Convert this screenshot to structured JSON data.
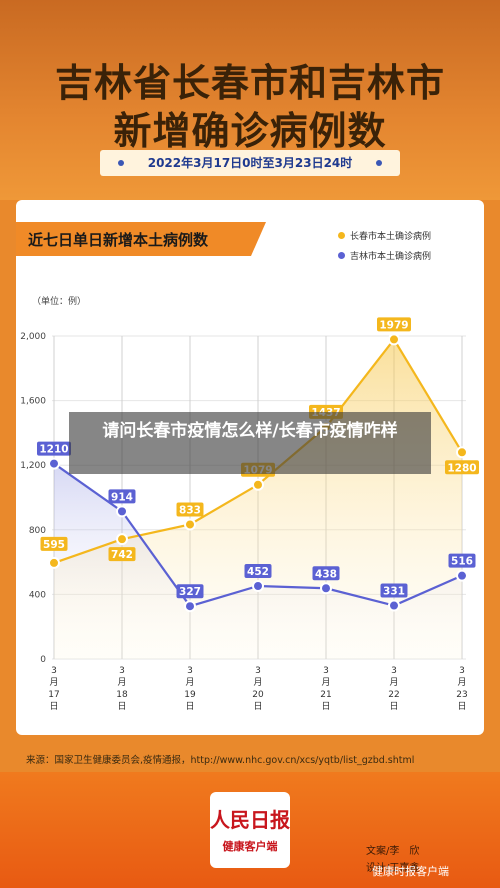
{
  "header": {
    "title_line1": "吉林省长春市和吉林市",
    "title_line2": "新增确诊病例数",
    "date_range": "2022年3月17日0时至3月23日24时"
  },
  "card": {
    "heading": "近七日单日新增本土病例数"
  },
  "chart_data": {
    "type": "line",
    "title": "近七日单日新增本土病例数",
    "unit_label": "（单位：例）",
    "x": [
      [
        "3",
        "月",
        "17",
        "日"
      ],
      [
        "3",
        "月",
        "18",
        "日"
      ],
      [
        "3",
        "月",
        "19",
        "日"
      ],
      [
        "3",
        "月",
        "20",
        "日"
      ],
      [
        "3",
        "月",
        "21",
        "日"
      ],
      [
        "3",
        "月",
        "22",
        "日"
      ],
      [
        "3",
        "月",
        "23",
        "日"
      ]
    ],
    "ylim": [
      0,
      2000
    ],
    "yticks": [
      0,
      400,
      800,
      1200,
      1600,
      2000
    ],
    "ytick_labels": [
      "0",
      "400",
      "800",
      "1,200",
      "1,600",
      "2,000"
    ],
    "grid": true,
    "legend_position": "top-right",
    "series": [
      {
        "name": "长春市本土确诊病例",
        "color": "#f4b71d",
        "values": [
          595,
          742,
          833,
          1079,
          1437,
          1979,
          1280
        ]
      },
      {
        "name": "吉林市本土确诊病例",
        "color": "#5b61d3",
        "values": [
          1210,
          914,
          327,
          452,
          438,
          331,
          516
        ]
      }
    ]
  },
  "source": "来源：国家卫生健康委员会,疫情通报，http://www.nhc.gov.cn/xcs/yqtb/list_gzbd.shtml",
  "footer": {
    "logo_main": "人民日报",
    "logo_sub": "健康客户端",
    "credit_text": "文案/李　欣",
    "credit_design": "设计/王嘉鑫",
    "watermark": "健康时报客户端"
  },
  "overlay": {
    "caption": "请问长春市疫情怎么样/长春市疫情咋样"
  },
  "colors": {
    "brand_orange": "#f08a27",
    "changchun": "#f4b71d",
    "jilin": "#5b61d3"
  }
}
